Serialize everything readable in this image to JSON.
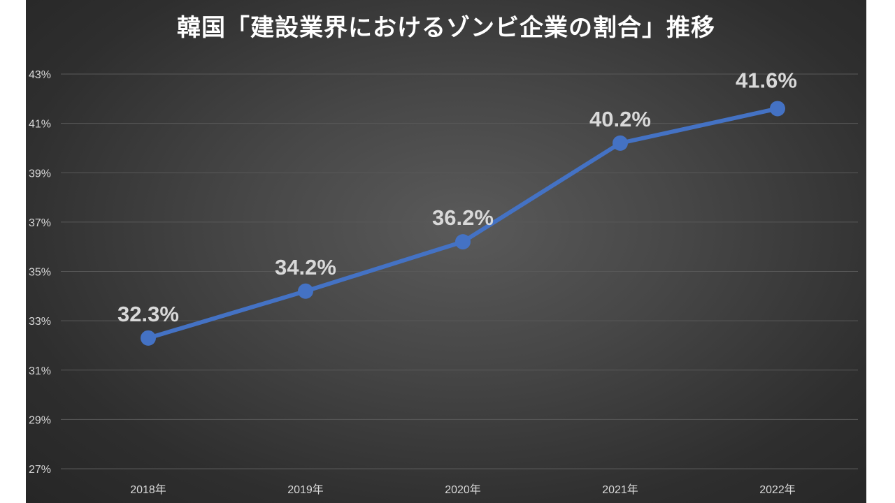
{
  "chart_data": {
    "type": "line",
    "title": "韓国「建設業界におけるゾンビ企業の割合」推移",
    "categories": [
      "2018年",
      "2019年",
      "2020年",
      "2021年",
      "2022年"
    ],
    "series": [
      {
        "values": [
          32.3,
          34.2,
          36.2,
          40.2,
          41.6
        ],
        "data_labels": [
          "32.3%",
          "34.2%",
          "36.2%",
          "40.2%",
          "41.6%"
        ]
      }
    ],
    "ylim": [
      27,
      43
    ],
    "yticks": [
      27,
      29,
      31,
      33,
      35,
      37,
      39,
      41,
      43
    ],
    "ytick_labels": [
      "27%",
      "29%",
      "31%",
      "33%",
      "35%",
      "37%",
      "39%",
      "41%",
      "43%"
    ],
    "grid": true,
    "colors": {
      "line": "#4472c4",
      "label": "#d9d9d9",
      "highlight_label": "#ff0000",
      "title": "#ffffff",
      "grid": "#595959"
    },
    "highlight_index": 4
  }
}
